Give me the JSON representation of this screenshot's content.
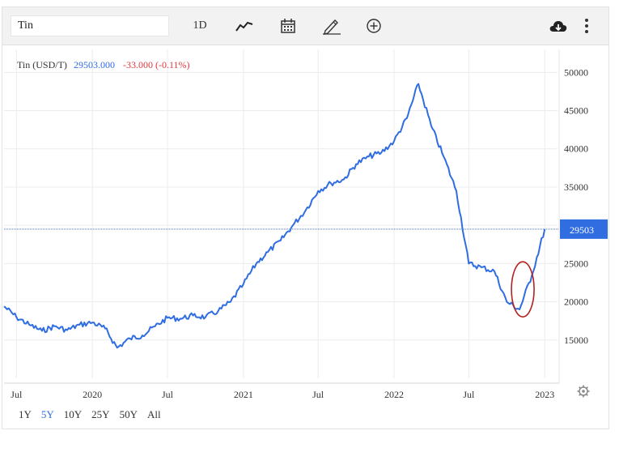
{
  "toolbar": {
    "symbol": "Tin",
    "interval_label": "1D",
    "icons": [
      "line-chart-icon",
      "calendar-icon",
      "pencil-icon",
      "plus-circle-icon",
      "cloud-download-icon",
      "vertical-dots-icon"
    ]
  },
  "legend": {
    "name": "Tin (USD/T)",
    "price": "29503.000",
    "change": "-33.000 (-0.11%)",
    "price_color": "#2f6de1",
    "change_color": "#e0393e"
  },
  "ranges": [
    {
      "label": "1Y",
      "active": false
    },
    {
      "label": "5Y",
      "active": true
    },
    {
      "label": "10Y",
      "active": false
    },
    {
      "label": "25Y",
      "active": false
    },
    {
      "label": "50Y",
      "active": false
    },
    {
      "label": "All",
      "active": false
    }
  ],
  "chart_data": {
    "type": "line",
    "series": [
      {
        "x": [
          "2019-06",
          "2019-07",
          "2019-08",
          "2019-09",
          "2019-10",
          "2019-11",
          "2019-12",
          "2020-01",
          "2020-02",
          "2020-03",
          "2020-04",
          "2020-05",
          "2020-06",
          "2020-07",
          "2020-08",
          "2020-09",
          "2020-10",
          "2020-11",
          "2020-12",
          "2021-01",
          "2021-02",
          "2021-03",
          "2021-04",
          "2021-05",
          "2021-06",
          "2021-07",
          "2021-08",
          "2021-09",
          "2021-10",
          "2021-11",
          "2021-12",
          "2022-01",
          "2022-02",
          "2022-03",
          "2022-04",
          "2022-05",
          "2022-06",
          "2022-07",
          "2022-08",
          "2022-09",
          "2022-10",
          "2022-11",
          "2022-12",
          "2023-01"
        ],
        "y": [
          19400,
          18000,
          17000,
          16200,
          16800,
          16300,
          17000,
          17300,
          16500,
          14000,
          15200,
          15600,
          16800,
          17900,
          17800,
          18200,
          18000,
          18800,
          20000,
          22300,
          25000,
          26500,
          28000,
          30000,
          32000,
          34500,
          35500,
          36000,
          38000,
          39000,
          39500,
          41000,
          44000,
          48500,
          43000,
          39000,
          34500,
          25000,
          24500,
          24000,
          20000,
          19000,
          23500,
          29503
        ]
      }
    ],
    "ylim": [
      10000,
      53000
    ],
    "yticks": [
      15000,
      20000,
      25000,
      30000,
      35000,
      40000,
      45000,
      50000
    ],
    "xticks": [
      {
        "label": "Jul",
        "date": "2019-07"
      },
      {
        "label": "2020",
        "date": "2020-01"
      },
      {
        "label": "Jul",
        "date": "2020-07"
      },
      {
        "label": "2021",
        "date": "2021-01"
      },
      {
        "label": "Jul",
        "date": "2021-07"
      },
      {
        "label": "2022",
        "date": "2022-01"
      },
      {
        "label": "Jul",
        "date": "2022-07"
      },
      {
        "label": "2023",
        "date": "2023-01"
      }
    ],
    "last_value_label": "29503",
    "last_value": 29503,
    "line_color": "#2f6de1",
    "grid": true,
    "annotation": {
      "shape": "ellipse",
      "color": "#b22222",
      "x": "2022-11",
      "y": 21000
    }
  }
}
